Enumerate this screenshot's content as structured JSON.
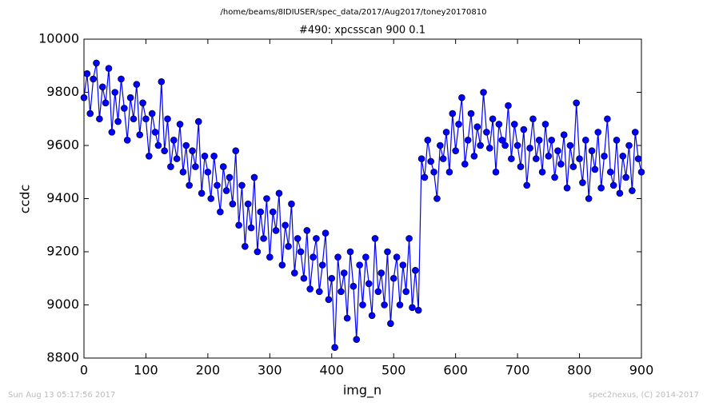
{
  "chart_data": {
    "type": "line",
    "suptitle": "/home/beams/8IDIUSER/spec_data/2017/Aug2017/toney20170810",
    "title": "#490: xpcsscan 900 0.1",
    "xlabel": "img_n",
    "ylabel": "ccdc",
    "footer_left": "Sun Aug 13 05:17:56 2017",
    "footer_right": "spec2nexus, (C) 2014-2017",
    "xlim": [
      0,
      900
    ],
    "ylim": [
      8800,
      10000
    ],
    "xticks": [
      0,
      100,
      200,
      300,
      400,
      500,
      600,
      700,
      800,
      900
    ],
    "yticks": [
      8800,
      9000,
      9200,
      9400,
      9600,
      9800,
      10000
    ],
    "x": [
      0,
      5,
      10,
      15,
      20,
      25,
      30,
      35,
      40,
      45,
      50,
      55,
      60,
      65,
      70,
      75,
      80,
      85,
      90,
      95,
      100,
      105,
      110,
      115,
      120,
      125,
      130,
      135,
      140,
      145,
      150,
      155,
      160,
      165,
      170,
      175,
      180,
      185,
      190,
      195,
      200,
      205,
      210,
      215,
      220,
      225,
      230,
      235,
      240,
      245,
      250,
      255,
      260,
      265,
      270,
      275,
      280,
      285,
      290,
      295,
      300,
      305,
      310,
      315,
      320,
      325,
      330,
      335,
      340,
      345,
      350,
      355,
      360,
      365,
      370,
      375,
      380,
      385,
      390,
      395,
      400,
      405,
      410,
      415,
      420,
      425,
      430,
      435,
      440,
      445,
      450,
      455,
      460,
      465,
      470,
      475,
      480,
      485,
      490,
      495,
      500,
      505,
      510,
      515,
      520,
      525,
      530,
      535,
      540,
      545,
      550,
      555,
      560,
      565,
      570,
      575,
      580,
      585,
      590,
      595,
      600,
      605,
      610,
      615,
      620,
      625,
      630,
      635,
      640,
      645,
      650,
      655,
      660,
      665,
      670,
      675,
      680,
      685,
      690,
      695,
      700,
      705,
      710,
      715,
      720,
      725,
      730,
      735,
      740,
      745,
      750,
      755,
      760,
      765,
      770,
      775,
      780,
      785,
      790,
      795,
      800,
      805,
      810,
      815,
      820,
      825,
      830,
      835,
      840,
      845,
      850,
      855,
      860,
      865,
      870,
      875,
      880,
      885,
      890,
      895,
      900
    ],
    "series": [
      {
        "name": "ccdc",
        "color": "#0000ff",
        "values": [
          9780,
          9870,
          9720,
          9850,
          9910,
          9700,
          9820,
          9760,
          9890,
          9650,
          9800,
          9690,
          9850,
          9740,
          9620,
          9780,
          9700,
          9830,
          9640,
          9760,
          9700,
          9560,
          9720,
          9650,
          9600,
          9840,
          9580,
          9700,
          9520,
          9620,
          9550,
          9680,
          9500,
          9600,
          9450,
          9580,
          9520,
          9690,
          9420,
          9560,
          9500,
          9400,
          9560,
          9450,
          9350,
          9520,
          9430,
          9480,
          9380,
          9580,
          9300,
          9450,
          9220,
          9380,
          9290,
          9480,
          9200,
          9350,
          9250,
          9400,
          9180,
          9350,
          9280,
          9420,
          9150,
          9300,
          9220,
          9380,
          9120,
          9250,
          9200,
          9100,
          9280,
          9060,
          9180,
          9250,
          9050,
          9150,
          9270,
          9020,
          9100,
          8840,
          9180,
          9050,
          9120,
          8950,
          9200,
          9070,
          8870,
          9150,
          9000,
          9180,
          9080,
          8960,
          9250,
          9050,
          9120,
          9000,
          9200,
          8930,
          9100,
          9180,
          9000,
          9150,
          9050,
          9250,
          8990,
          9130,
          8980,
          9550,
          9480,
          9620,
          9540,
          9500,
          9400,
          9600,
          9550,
          9650,
          9500,
          9720,
          9580,
          9680,
          9780,
          9530,
          9620,
          9720,
          9560,
          9670,
          9600,
          9800,
          9650,
          9590,
          9700,
          9500,
          9680,
          9620,
          9600,
          9750,
          9550,
          9680,
          9600,
          9520,
          9660,
          9450,
          9590,
          9700,
          9550,
          9620,
          9500,
          9680,
          9560,
          9620,
          9480,
          9580,
          9530,
          9640,
          9440,
          9600,
          9520,
          9760,
          9550,
          9460,
          9620,
          9400,
          9580,
          9510,
          9650,
          9440,
          9560,
          9700,
          9500,
          9450,
          9620,
          9420,
          9560,
          9480,
          9600,
          9430,
          9650,
          9550,
          9500
        ]
      }
    ]
  }
}
